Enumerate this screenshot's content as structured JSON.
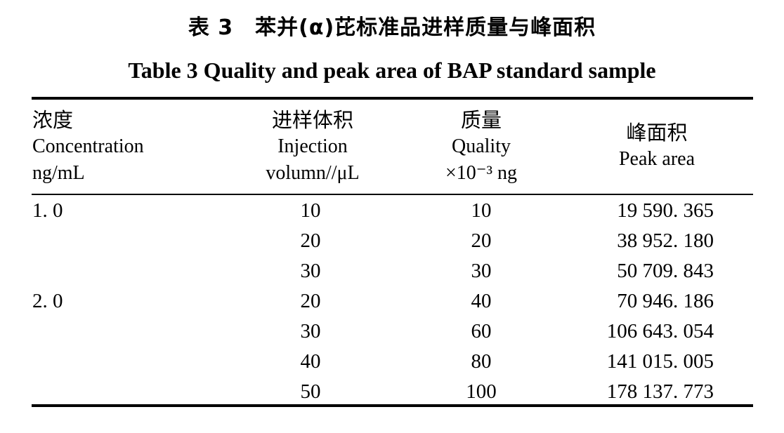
{
  "title_cn": "表 3　苯并(α)芘标准品进样质量与峰面积",
  "title_en": "Table 3   Quality and peak area of BAP standard sample",
  "headers": {
    "concentration": {
      "cn": "浓度",
      "en": "Concentration",
      "unit": "ng/mL"
    },
    "injection": {
      "cn": "进样体积",
      "en": "Injection",
      "unit": "volumn//μL"
    },
    "quality": {
      "cn": "质量",
      "en": "Quality",
      "unit": "×10⁻³ ng"
    },
    "peak": {
      "cn": "峰面积",
      "en": "Peak area"
    }
  },
  "rows": [
    {
      "concentration": "1. 0",
      "injection": "10",
      "quality": "10",
      "peak": "19 590. 365"
    },
    {
      "concentration": "",
      "injection": "20",
      "quality": "20",
      "peak": "38 952. 180"
    },
    {
      "concentration": "",
      "injection": "30",
      "quality": "30",
      "peak": "50 709. 843"
    },
    {
      "concentration": "2. 0",
      "injection": "20",
      "quality": "40",
      "peak": "70 946. 186"
    },
    {
      "concentration": "",
      "injection": "30",
      "quality": "60",
      "peak": "106 643. 054"
    },
    {
      "concentration": "",
      "injection": "40",
      "quality": "80",
      "peak": "141 015. 005"
    },
    {
      "concentration": "",
      "injection": "50",
      "quality": "100",
      "peak": "178 137. 773"
    }
  ]
}
